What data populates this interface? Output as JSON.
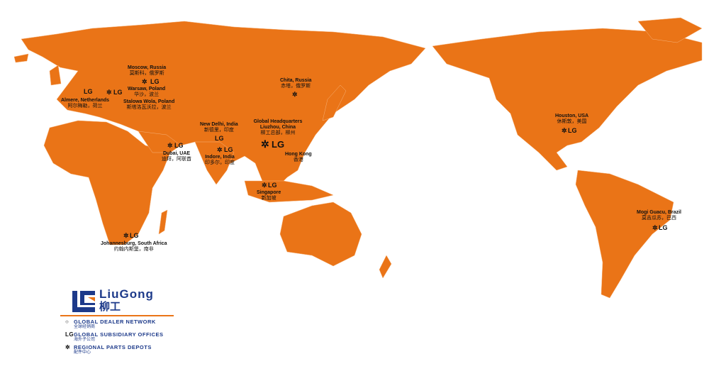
{
  "colors": {
    "land": "#ea7417",
    "ocean": "#ffffff",
    "brand": "#1d3a8a",
    "accent": "#ea7417"
  },
  "brand": {
    "name": "LiuGong",
    "name_zh": "柳工"
  },
  "legend": [
    {
      "icon": "white-dot-icon",
      "label": "GLOBAL DEALER NETWORK",
      "label_zh": "全球经销商"
    },
    {
      "icon": "liugong-logo-icon",
      "label": "GLOBAL SUBSIDIARY OFFICES",
      "label_zh": "海外子公司"
    },
    {
      "icon": "gear-icon",
      "label": "REGIONAL PARTS DEPOTS",
      "label_zh": "配件中心"
    }
  ],
  "locations": [
    {
      "name": "Moscow, Russia",
      "zh": "莫斯科，俄罗斯"
    },
    {
      "name": "Warsaw, Poland",
      "zh": "华沙，波兰"
    },
    {
      "name": "Stalowa Wola, Poland",
      "zh": "斯塔洛瓦沃拉，波兰"
    },
    {
      "name": "Almere, Netherlands",
      "zh": "阿尔梅勒，荷兰"
    },
    {
      "name": "Chita, Russia",
      "zh": "赤塔，俄罗斯"
    },
    {
      "name": "New Delhi, India",
      "zh": "新德里，印度"
    },
    {
      "name": "Global Headquarters Liuzhou, China",
      "zh": "柳工总部，柳州"
    },
    {
      "name": "Dubai, UAE",
      "zh": "迪拜，阿联酋"
    },
    {
      "name": "Indore, India",
      "zh": "印多尔，印度"
    },
    {
      "name": "Hong Kong",
      "zh": "香港"
    },
    {
      "name": "Singapore",
      "zh": "新加坡"
    },
    {
      "name": "Johannesburg, South Africa",
      "zh": "约翰内斯堡，南非"
    },
    {
      "name": "Houston, USA",
      "zh": "休斯敦，美国"
    },
    {
      "name": "Mogi Guacu, Brazil",
      "zh": "莫吉瓜苏，巴西"
    }
  ]
}
